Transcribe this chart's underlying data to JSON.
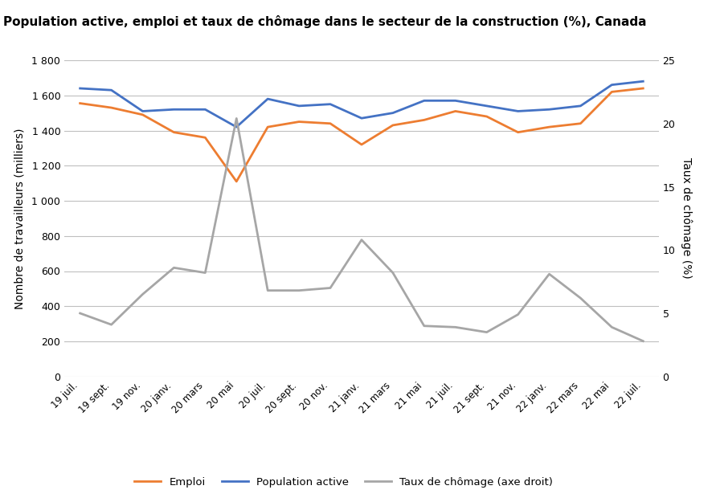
{
  "title": "Population active, emploi et taux de chômage dans le secteur de la construction (%), Canada",
  "ylabel_left": "Nombre de travailleurs (milliers)",
  "ylabel_right": "Taux de chômage (%)",
  "x_labels": [
    "19 juil.",
    "19 sept.",
    "19 nov.",
    "20 janv.",
    "20 mars",
    "20 mai",
    "20 juil.",
    "20 sept.",
    "20 nov.",
    "21 janv.",
    "21 mars",
    "21 mai",
    "21 juil.",
    "21 sept.",
    "21 nov.",
    "22 janv.",
    "22 mars",
    "22 mai",
    "22 juil."
  ],
  "emploi": [
    1555,
    1530,
    1490,
    1390,
    1360,
    1110,
    1420,
    1450,
    1440,
    1320,
    1430,
    1460,
    1510,
    1480,
    1390,
    1420,
    1440,
    1620,
    1640
  ],
  "population_active": [
    1640,
    1630,
    1510,
    1520,
    1520,
    1420,
    1580,
    1540,
    1550,
    1470,
    1500,
    1570,
    1570,
    1540,
    1510,
    1520,
    1540,
    1660,
    1680
  ],
  "taux_chomage_pct": [
    5.0,
    4.1,
    6.5,
    8.6,
    8.2,
    20.4,
    6.8,
    6.8,
    7.0,
    10.8,
    8.2,
    4.0,
    3.9,
    3.5,
    4.9,
    8.1,
    6.2,
    3.9,
    2.8
  ],
  "emploi_color": "#ED7D31",
  "population_active_color": "#4472C4",
  "taux_chomage_color": "#A6A6A6",
  "ylim_left": [
    0,
    1800
  ],
  "ylim_right": [
    0,
    25
  ],
  "yticks_left": [
    0,
    200,
    400,
    600,
    800,
    1000,
    1200,
    1400,
    1600,
    1800
  ],
  "yticks_right": [
    0,
    5,
    10,
    15,
    20,
    25
  ],
  "background_color": "#FFFFFF",
  "grid_color": "#BFBFBF",
  "line_width": 2.0,
  "legend_labels": [
    "Emploi",
    "Population active",
    "Taux de chômage (axe droit)"
  ]
}
